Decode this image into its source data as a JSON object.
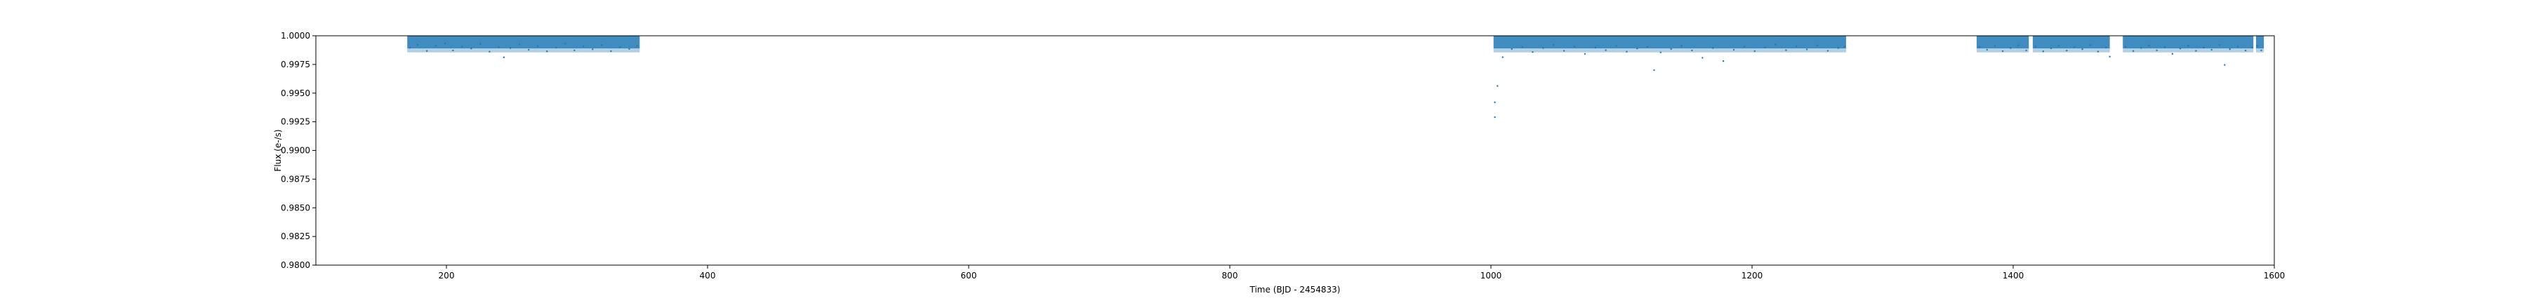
{
  "chart_data": {
    "type": "scatter",
    "title": "",
    "xlabel": "Time (BJD - 2454833)",
    "ylabel": "Flux (e-/s)",
    "xlim": [
      100,
      1600
    ],
    "ylim": [
      0.98,
      1.0
    ],
    "grid": false,
    "legend": "none",
    "xticks": [
      200,
      400,
      600,
      800,
      1000,
      1200,
      1400,
      1600
    ],
    "yticks": [
      0.98,
      0.9825,
      0.985,
      0.9875,
      0.99,
      0.9925,
      0.995,
      0.9975,
      1.0
    ],
    "xtick_labels": [
      "200",
      "400",
      "600",
      "800",
      "1000",
      "1200",
      "1400",
      "1600"
    ],
    "ytick_labels": [
      "0.9800",
      "0.9825",
      "0.9850",
      "0.9875",
      "0.9900",
      "0.9925",
      "0.9950",
      "0.9975",
      "1.0000"
    ],
    "point_color": "#1f77b4",
    "observed_segments": [
      {
        "start": 170,
        "end": 348
      },
      {
        "start": 1002,
        "end": 1272
      },
      {
        "start": 1372,
        "end": 1412
      },
      {
        "start": 1415,
        "end": 1474
      },
      {
        "start": 1484,
        "end": 1584
      },
      {
        "start": 1586,
        "end": 1592
      }
    ],
    "series": [
      {
        "points": [
          [
            172,
            0.99895
          ],
          [
            178,
            0.99921
          ],
          [
            185,
            0.99868
          ],
          [
            192,
            0.99912
          ],
          [
            199,
            0.99934
          ],
          [
            205,
            0.99872
          ],
          [
            212,
            0.99905
          ],
          [
            219,
            0.99889
          ],
          [
            226,
            0.99928
          ],
          [
            233,
            0.99861
          ],
          [
            240,
            0.99902
          ],
          [
            244,
            0.99812
          ],
          [
            249,
            0.99893
          ],
          [
            256,
            0.99925
          ],
          [
            263,
            0.99878
          ],
          [
            270,
            0.99909
          ],
          [
            277,
            0.99864
          ],
          [
            284,
            0.99897
          ],
          [
            291,
            0.99931
          ],
          [
            298,
            0.99873
          ],
          [
            305,
            0.99908
          ],
          [
            312,
            0.99882
          ],
          [
            319,
            0.99919
          ],
          [
            326,
            0.99866
          ],
          [
            333,
            0.99901
          ],
          [
            340,
            0.99885
          ],
          [
            346,
            0.99912
          ],
          [
            1003,
            0.9929
          ],
          [
            1003,
            0.9942
          ],
          [
            1005,
            0.99562
          ],
          [
            1009,
            0.99813
          ],
          [
            1016,
            0.99884
          ],
          [
            1024,
            0.99902
          ],
          [
            1032,
            0.99858
          ],
          [
            1040,
            0.99893
          ],
          [
            1048,
            0.99921
          ],
          [
            1056,
            0.99869
          ],
          [
            1064,
            0.99905
          ],
          [
            1072,
            0.99842
          ],
          [
            1080,
            0.99897
          ],
          [
            1088,
            0.99874
          ],
          [
            1096,
            0.99911
          ],
          [
            1104,
            0.99861
          ],
          [
            1112,
            0.99889
          ],
          [
            1120,
            0.99903
          ],
          [
            1125,
            0.997
          ],
          [
            1130,
            0.99855
          ],
          [
            1138,
            0.99884
          ],
          [
            1146,
            0.99912
          ],
          [
            1154,
            0.99872
          ],
          [
            1162,
            0.99808
          ],
          [
            1170,
            0.99893
          ],
          [
            1178,
            0.99779
          ],
          [
            1186,
            0.99878
          ],
          [
            1194,
            0.99905
          ],
          [
            1202,
            0.99866
          ],
          [
            1210,
            0.99898
          ],
          [
            1218,
            0.99922
          ],
          [
            1226,
            0.99874
          ],
          [
            1234,
            0.99907
          ],
          [
            1242,
            0.99881
          ],
          [
            1250,
            0.99915
          ],
          [
            1258,
            0.99869
          ],
          [
            1266,
            0.99893
          ],
          [
            1271,
            0.99907
          ],
          [
            1374,
            0.99903
          ],
          [
            1380,
            0.99878
          ],
          [
            1386,
            0.99911
          ],
          [
            1392,
            0.99866
          ],
          [
            1398,
            0.99893
          ],
          [
            1404,
            0.99917
          ],
          [
            1410,
            0.99872
          ],
          [
            1417,
            0.99906
          ],
          [
            1423,
            0.99864
          ],
          [
            1429,
            0.99891
          ],
          [
            1435,
            0.99912
          ],
          [
            1441,
            0.99871
          ],
          [
            1447,
            0.99902
          ],
          [
            1453,
            0.99883
          ],
          [
            1459,
            0.99918
          ],
          [
            1465,
            0.99862
          ],
          [
            1471,
            0.99898
          ],
          [
            1474,
            0.99818
          ],
          [
            1486,
            0.99904
          ],
          [
            1492,
            0.99867
          ],
          [
            1498,
            0.99894
          ],
          [
            1504,
            0.99915
          ],
          [
            1510,
            0.99873
          ],
          [
            1516,
            0.99901
          ],
          [
            1522,
            0.99842
          ],
          [
            1528,
            0.99889
          ],
          [
            1534,
            0.99913
          ],
          [
            1540,
            0.99869
          ],
          [
            1546,
            0.99897
          ],
          [
            1552,
            0.99878
          ],
          [
            1558,
            0.9992
          ],
          [
            1562,
            0.99746
          ],
          [
            1566,
            0.99883
          ],
          [
            1572,
            0.99905
          ],
          [
            1578,
            0.99871
          ],
          [
            1583,
            0.99898
          ],
          [
            1587,
            0.99912
          ],
          [
            1590,
            0.99873
          ]
        ]
      }
    ]
  }
}
